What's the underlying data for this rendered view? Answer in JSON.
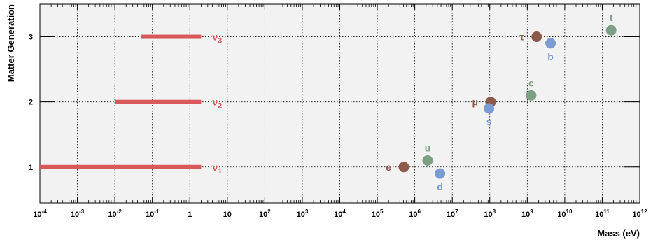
{
  "chart_data": {
    "type": "scatter",
    "title": "",
    "xlabel": "Mass (eV)",
    "ylabel": "Matter Generation",
    "x_scale": "log",
    "xlim": [
      0.0001,
      1000000000000
    ],
    "ylim": [
      0.45,
      3.5
    ],
    "grid": true,
    "x_ticks": [
      {
        "mantissa": "10",
        "exp": "-4"
      },
      {
        "mantissa": "10",
        "exp": "-3"
      },
      {
        "mantissa": "10",
        "exp": "-2"
      },
      {
        "mantissa": "10",
        "exp": "-1"
      },
      {
        "mantissa": "1",
        "exp": ""
      },
      {
        "mantissa": "10",
        "exp": ""
      },
      {
        "mantissa": "10",
        "exp": "2"
      },
      {
        "mantissa": "10",
        "exp": "3"
      },
      {
        "mantissa": "10",
        "exp": "4"
      },
      {
        "mantissa": "10",
        "exp": "5"
      },
      {
        "mantissa": "10",
        "exp": "6"
      },
      {
        "mantissa": "10",
        "exp": "7"
      },
      {
        "mantissa": "10",
        "exp": "8"
      },
      {
        "mantissa": "10",
        "exp": "9"
      },
      {
        "mantissa": "10",
        "exp": "10"
      },
      {
        "mantissa": "10",
        "exp": "11"
      },
      {
        "mantissa": "10",
        "exp": "12"
      }
    ],
    "y_ticks": [
      "1",
      "2",
      "3"
    ],
    "neutrino_ranges": [
      {
        "name": "ν",
        "sub": "1",
        "generation": 1,
        "x_min": 0.0001,
        "x_max": 2
      },
      {
        "name": "ν",
        "sub": "2",
        "generation": 2,
        "x_min": 0.01,
        "x_max": 2
      },
      {
        "name": "ν",
        "sub": "3",
        "generation": 3,
        "x_min": 0.05,
        "x_max": 2
      }
    ],
    "particles": [
      {
        "name": "e",
        "mass": 511000,
        "y": 1.0,
        "group": "lepton",
        "label_side": "left"
      },
      {
        "name": "μ",
        "mass": 105700000,
        "y": 2.0,
        "group": "lepton",
        "label_side": "left"
      },
      {
        "name": "τ",
        "mass": 1777000000,
        "y": 3.0,
        "group": "lepton",
        "label_side": "left"
      },
      {
        "name": "u",
        "mass": 2200000,
        "y": 1.1,
        "group": "up-quark",
        "label_side": "above"
      },
      {
        "name": "c",
        "mass": 1270000000,
        "y": 2.1,
        "group": "up-quark",
        "label_side": "above"
      },
      {
        "name": "t",
        "mass": 173000000000,
        "y": 3.1,
        "group": "up-quark",
        "label_side": "above"
      },
      {
        "name": "d",
        "mass": 4700000,
        "y": 0.9,
        "group": "down-quark",
        "label_side": "below"
      },
      {
        "name": "s",
        "mass": 95000000,
        "y": 1.9,
        "group": "down-quark",
        "label_side": "below"
      },
      {
        "name": "b",
        "mass": 4180000000,
        "y": 2.9,
        "group": "down-quark",
        "label_side": "below"
      }
    ],
    "colors": {
      "lepton": "#8b5a4a",
      "up-quark": "#7c9f86",
      "down-quark": "#7b9bd2",
      "neutrino": "#d9595b",
      "plot_bg": "#f2f2f2"
    }
  }
}
